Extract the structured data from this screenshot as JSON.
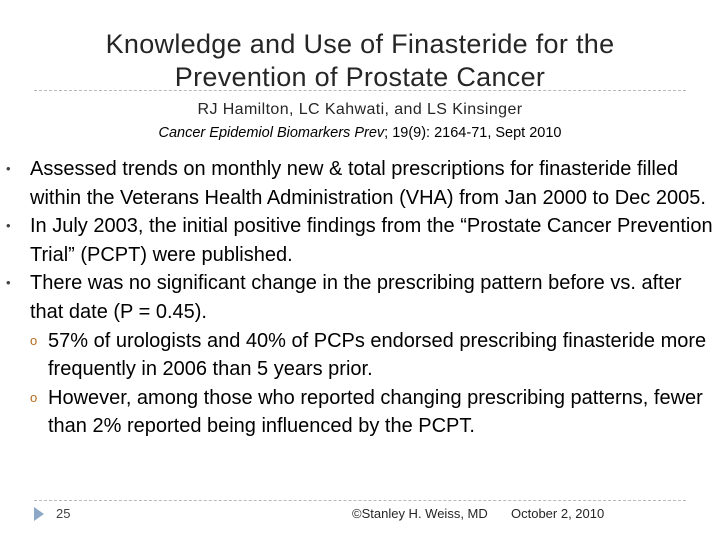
{
  "slide": {
    "title_line1": "Knowledge and Use of Finasteride for the",
    "title_line2": "Prevention of Prostate Cancer",
    "authors": "RJ Hamilton, LC Kahwati, and LS Kinsinger",
    "citation_journal": "Cancer Epidemiol Biomarkers Prev",
    "citation_rest": "; 19(9): 2164-71, Sept 2010",
    "bullet_marker": "•",
    "sub_marker": "o",
    "bullets": [
      "Assessed trends on monthly new & total prescriptions for finasteride filled within the Veterans Health Administration (VHA) from Jan 2000 to Dec 2005.",
      "In July 2003, the initial positive findings from the “Prostate Cancer Prevention Trial” (PCPT) were published.",
      "There was no significant change in the prescribing pattern before vs. after that date (P = 0.45)."
    ],
    "sub_bullets": [
      "57% of urologists and 40% of PCPs endorsed prescribing finasteride more frequently in 2006 than 5 years prior.",
      "However, among those who reported changing prescribing patterns, fewer than 2% reported being influenced by the PCPT."
    ]
  },
  "footer": {
    "page_number": "25",
    "author": "©Stanley H. Weiss, MD",
    "date": "October 2, 2010"
  }
}
